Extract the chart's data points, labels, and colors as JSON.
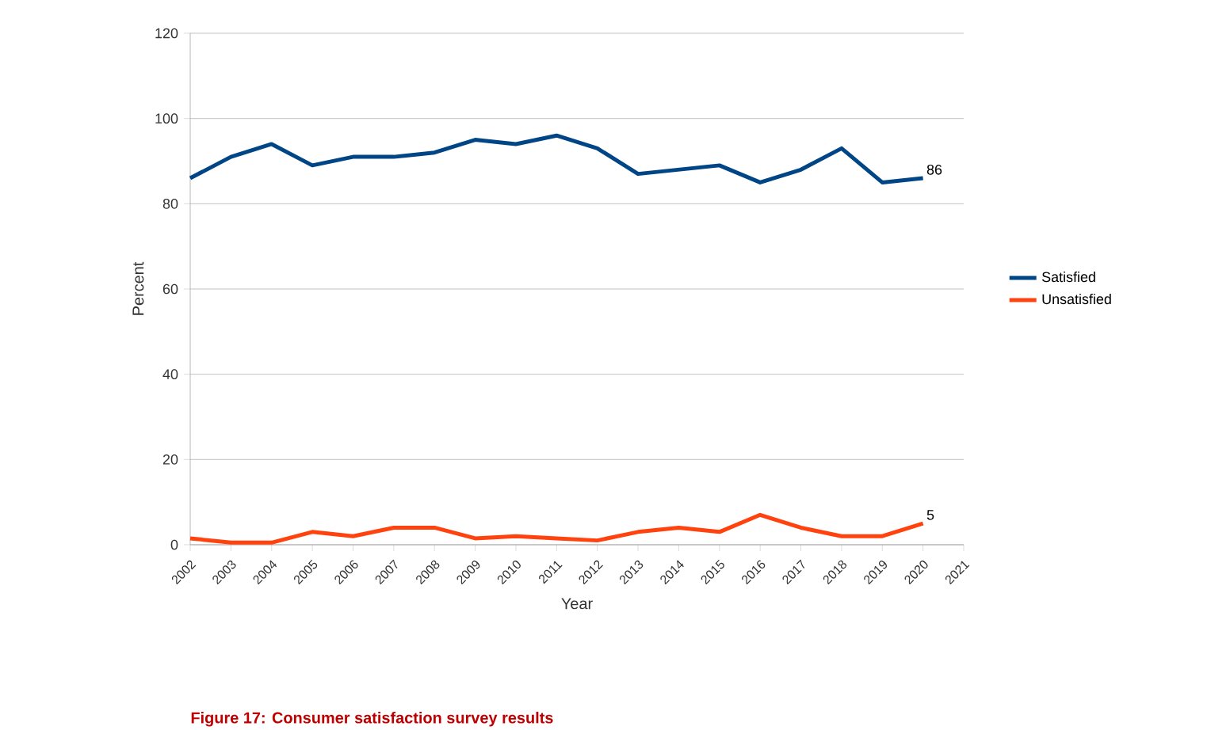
{
  "chart_data": {
    "type": "line",
    "xlabel": "Year",
    "ylabel": "Percent",
    "x": [
      2002,
      2003,
      2004,
      2005,
      2006,
      2007,
      2008,
      2009,
      2010,
      2011,
      2012,
      2013,
      2014,
      2015,
      2016,
      2017,
      2018,
      2019,
      2020
    ],
    "series": [
      {
        "name": "Satisfied",
        "color": "#004586",
        "values": [
          86,
          91,
          94,
          89,
          91,
          91,
          92,
          95,
          94,
          96,
          93,
          87,
          88,
          89,
          85,
          88,
          93,
          85,
          86
        ]
      },
      {
        "name": "Unsatisfied",
        "color": "#ff420e",
        "values": [
          1.5,
          0.5,
          0.5,
          3,
          2,
          4,
          4,
          1.5,
          2,
          1.5,
          1,
          3,
          4,
          3,
          7,
          4,
          2,
          2,
          5
        ]
      }
    ],
    "xlim": [
      2002,
      2021
    ],
    "xticks": [
      2002,
      2003,
      2004,
      2005,
      2006,
      2007,
      2008,
      2009,
      2010,
      2011,
      2012,
      2013,
      2014,
      2015,
      2016,
      2017,
      2018,
      2019,
      2020,
      2021
    ],
    "ylim": [
      0,
      120
    ],
    "yticks": [
      0,
      20,
      40,
      60,
      80,
      100,
      120
    ],
    "grid": "y",
    "legend": "right",
    "marker": "none",
    "line_style": "solid",
    "annotations": [
      {
        "text": "86",
        "x": 2020,
        "y": 86
      },
      {
        "text": "5",
        "x": 2020,
        "y": 5
      },
      "Figure 17: Consumer satisfaction survey results"
    ]
  }
}
